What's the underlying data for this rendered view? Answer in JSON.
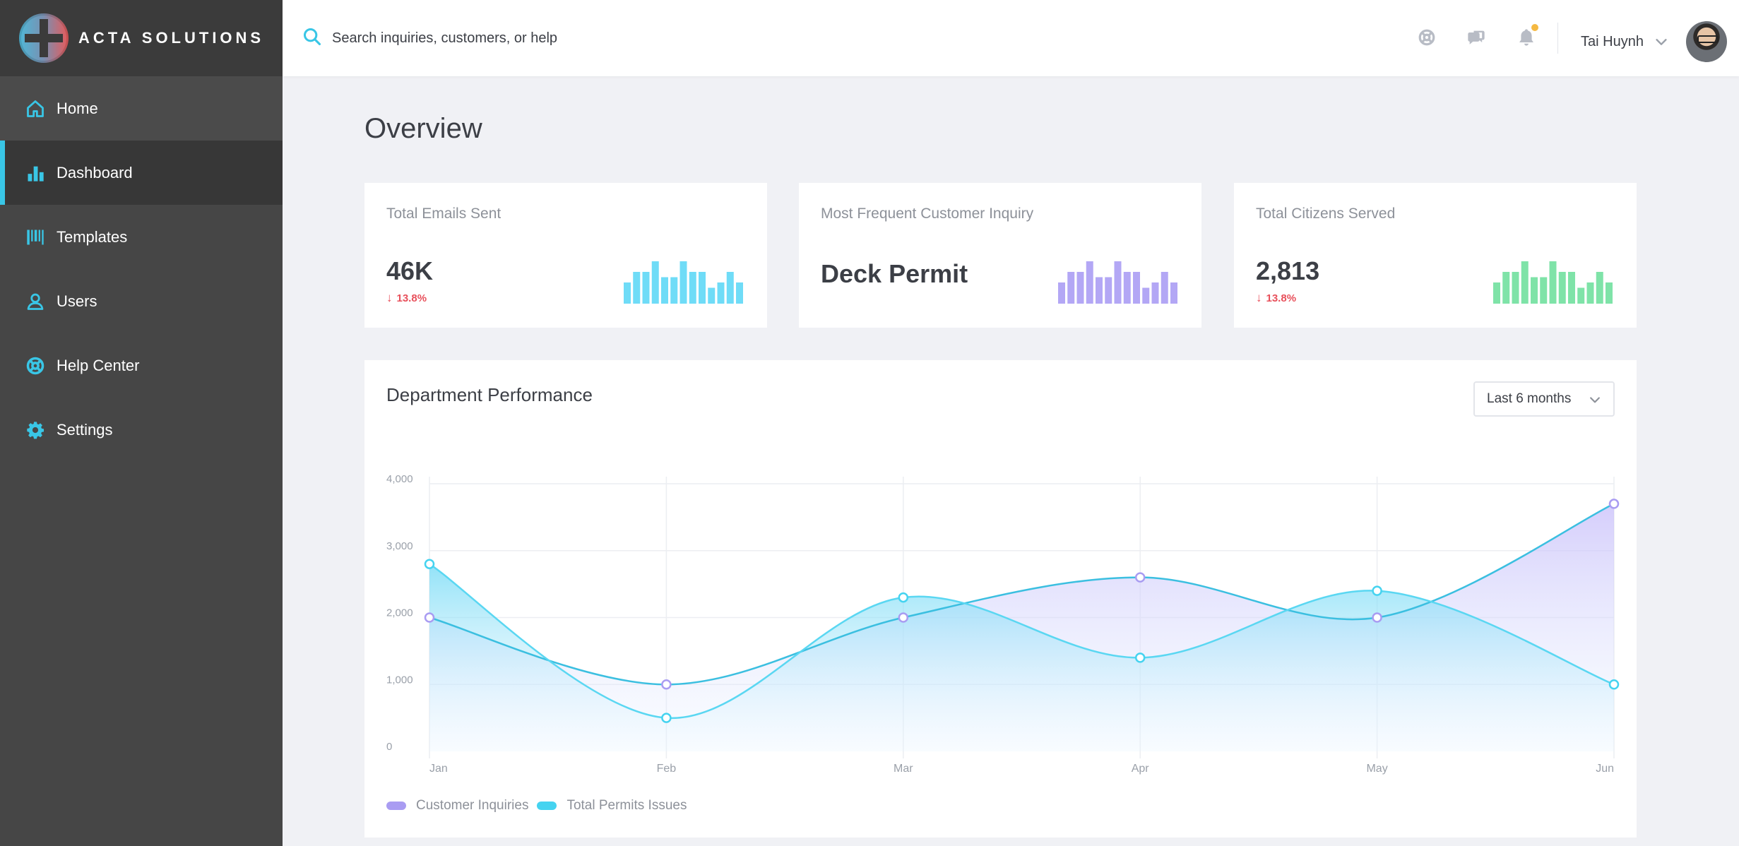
{
  "brand": {
    "name": "ACTA SOLUTIONS"
  },
  "sidebar": {
    "items": [
      {
        "label": "Home",
        "icon": "home-icon"
      },
      {
        "label": "Dashboard",
        "icon": "bar-chart-icon",
        "active": true
      },
      {
        "label": "Templates",
        "icon": "barcode-icon"
      },
      {
        "label": "Users",
        "icon": "user-icon"
      },
      {
        "label": "Help Center",
        "icon": "lifebuoy-icon"
      },
      {
        "label": "Settings",
        "icon": "gear-icon"
      }
    ]
  },
  "topbar": {
    "search_placeholder": "Search inquiries, customers, or help",
    "icons": [
      "lifebuoy-icon",
      "chat-icon",
      "bell-icon"
    ],
    "user_name": "Tai Huynh"
  },
  "page": {
    "title": "Overview"
  },
  "cards": [
    {
      "label": "Total Emails Sent",
      "value": "46K",
      "change": "13.8%",
      "direction": "down",
      "spark_color": "#6fdcf7",
      "spark_values": [
        4,
        6,
        6,
        8,
        5,
        5,
        8,
        6,
        6,
        3,
        4,
        6,
        4
      ]
    },
    {
      "label": "Most Frequent Customer Inquiry",
      "value": "Deck Permit",
      "spark_color": "#b3a7f5",
      "spark_values": [
        4,
        6,
        6,
        8,
        5,
        5,
        8,
        6,
        6,
        3,
        4,
        6,
        4
      ]
    },
    {
      "label": "Total Citizens Served",
      "value": "2,813",
      "change": "13.8%",
      "direction": "down",
      "spark_color": "#7fe3a8",
      "spark_values": [
        4,
        6,
        6,
        8,
        5,
        5,
        8,
        6,
        6,
        3,
        4,
        6,
        4
      ]
    }
  ],
  "performance": {
    "title": "Department Performance",
    "range_label": "Last 6 months"
  },
  "colors": {
    "accent": "#39c6e6",
    "purple": "#a99cf2",
    "cyan": "#45d3f0",
    "negative": "#e8505b"
  },
  "chart_data": {
    "type": "area",
    "x": [
      "Jan",
      "Feb",
      "Mar",
      "Apr",
      "May",
      "Jun"
    ],
    "yticks": [
      "0",
      "1,000",
      "2,000",
      "3,000",
      "4,000"
    ],
    "ylim": [
      0,
      4000
    ],
    "grid": true,
    "legend_position": "bottom-left",
    "series": [
      {
        "name": "Customer Inquiries",
        "values": [
          2000,
          1000,
          2000,
          2600,
          2000,
          3700
        ],
        "color": "#a99cf2"
      },
      {
        "name": "Total Permits Issues",
        "values": [
          2800,
          500,
          2300,
          1400,
          2400,
          1000
        ],
        "color": "#45d3f0"
      }
    ]
  }
}
